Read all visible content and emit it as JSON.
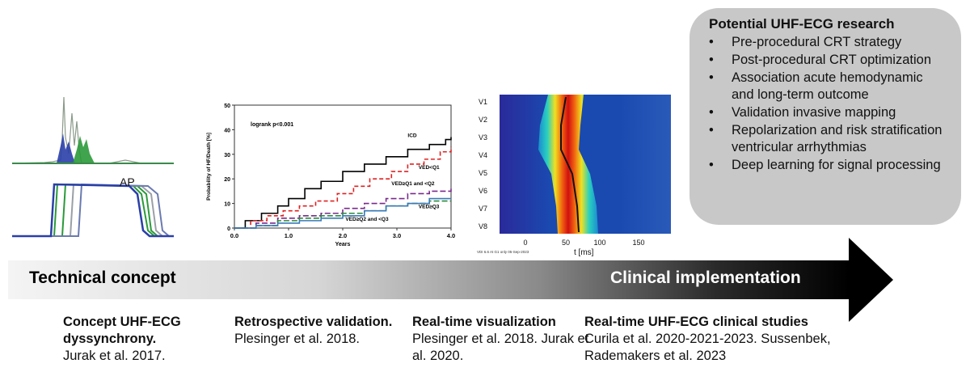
{
  "research": {
    "title": "Potential UHF-ECG research",
    "items": [
      "Pre-procedural CRT strategy",
      "Post-procedural CRT optimization",
      "Association acute hemodynamic and long-term outcome",
      "Validation invasive mapping",
      "Repolarization and risk stratification ventricular arrhythmias",
      "Deep learning for signal processing"
    ]
  },
  "arrow": {
    "left_label": "Technical concept",
    "right_label": "Clinical implementation"
  },
  "panel1": {
    "ap_label": "AP"
  },
  "chart_data": {
    "type": "line",
    "title": "",
    "annotation": "logrank p<0.001",
    "xlabel": "Years",
    "ylabel": "Probability of HF/Death [%]",
    "xlim": [
      0,
      4
    ],
    "ylim": [
      0,
      50
    ],
    "xticks": [
      "0.0",
      "1.0",
      "2.0",
      "3.0",
      "4.0"
    ],
    "yticks": [
      "0",
      "10",
      "20",
      "30",
      "40",
      "50"
    ],
    "series": [
      {
        "name": "ICD",
        "color": "#000000",
        "dash": "",
        "x": [
          0,
          0.2,
          0.5,
          0.8,
          1.0,
          1.3,
          1.6,
          2.0,
          2.4,
          2.8,
          3.2,
          3.6,
          3.9,
          4.0
        ],
        "y": [
          0,
          3,
          6,
          9,
          12,
          16,
          19,
          23,
          26,
          29,
          32,
          34,
          36,
          37
        ]
      },
      {
        "name": "VED<Q1",
        "color": "#e02020",
        "dash": "5,3",
        "x": [
          0,
          0.3,
          0.6,
          0.9,
          1.2,
          1.5,
          1.9,
          2.2,
          2.5,
          2.9,
          3.2,
          3.5,
          3.8,
          4.0
        ],
        "y": [
          0,
          3,
          5,
          7,
          9,
          11,
          14,
          17,
          20,
          23,
          26,
          28,
          31,
          33
        ]
      },
      {
        "name": "VED≥Q1 and <Q2",
        "color": "#7a2a8c",
        "dash": "7,3",
        "x": [
          0,
          0.4,
          0.8,
          1.2,
          1.6,
          2.0,
          2.4,
          2.8,
          3.2,
          3.6,
          4.0
        ],
        "y": [
          0,
          2,
          4,
          5,
          6,
          8,
          10,
          12,
          14,
          15,
          16
        ]
      },
      {
        "name": "VED≥Q3",
        "color": "#2a8a3a",
        "dash": "7,3",
        "x": [
          0,
          0.4,
          0.8,
          1.2,
          1.6,
          2.0,
          2.4,
          2.8,
          3.2,
          3.6,
          4.0
        ],
        "y": [
          0,
          1,
          3,
          4,
          5,
          6,
          7,
          9,
          10,
          11,
          11
        ]
      },
      {
        "name": "VED≥Q2 and <Q3",
        "color": "#3a7ab8",
        "dash": "",
        "x": [
          0,
          0.4,
          0.8,
          1.2,
          1.6,
          2.0,
          2.4,
          2.8,
          3.2,
          3.6,
          4.0
        ],
        "y": [
          0,
          1,
          2,
          3,
          4,
          5,
          7,
          9,
          10,
          12,
          12
        ]
      }
    ],
    "series_label_text": [
      "ICD",
      "VED<Q1",
      "VED≥Q1 and <Q2",
      "VED≥Q3",
      "VED≥Q2 and <Q3"
    ]
  },
  "heatmap": {
    "leads": [
      "V1",
      "V2",
      "V3",
      "V4",
      "V5",
      "V6",
      "V7",
      "V8"
    ],
    "xticks": [
      "0",
      "50",
      "100",
      "150"
    ],
    "xlabel": "t  [ms]",
    "footnote": "VDI 6.6 At G1 only 05-Sep-2023"
  },
  "bottom": [
    {
      "heading": "Concept UHF-ECG dyssynchrony.",
      "citation": "Jurak et al. 2017."
    },
    {
      "heading": "Retrospective validation.",
      "citation": "Plesinger et al. 2018."
    },
    {
      "heading": "Real-time visualization",
      "citation": "Plesinger et al. 2018. Jurak et al. 2020."
    },
    {
      "heading": "Real-time UHF-ECG clinical studies",
      "citation": "Curila et al. 2020-2021-2023. Sussenbek, Rademakers et al. 2023"
    }
  ],
  "colors": {
    "box": "#c8c8c8",
    "arrow_dark": "#000000",
    "arrow_light": "#f2f2f2"
  }
}
